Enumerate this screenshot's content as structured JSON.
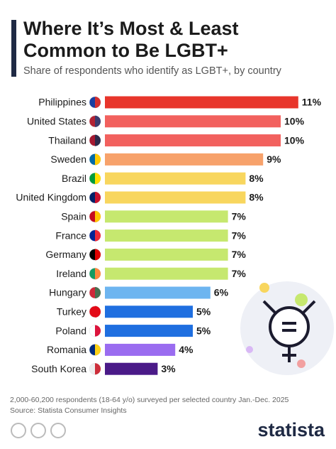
{
  "chart_data": {
    "type": "bar",
    "orientation": "horizontal",
    "title": "Where It’s Most & Least Common to Be LGBT+",
    "subtitle": "Share of respondents who identify as LGBT+, by country",
    "categories": [
      "Philippines",
      "United States",
      "Thailand",
      "Sweden",
      "Brazil",
      "United Kingdom",
      "Spain",
      "France",
      "Germany",
      "Ireland",
      "Hungary",
      "Turkey",
      "Poland",
      "Romania",
      "South Korea"
    ],
    "values": [
      11,
      10,
      10,
      9,
      8,
      8,
      7,
      7,
      7,
      7,
      6,
      5,
      5,
      4,
      3
    ],
    "value_labels": [
      "11%",
      "10%",
      "10%",
      "9%",
      "8%",
      "8%",
      "7%",
      "7%",
      "7%",
      "7%",
      "6%",
      "5%",
      "5%",
      "4%",
      "3%"
    ],
    "colors": [
      "#e8352b",
      "#f2615e",
      "#f2615e",
      "#f7a26b",
      "#f8d65e",
      "#f8d65e",
      "#c6e86f",
      "#c6e86f",
      "#c6e86f",
      "#c6e86f",
      "#6db5f0",
      "#1f6fe0",
      "#1f6fe0",
      "#9a6cf0",
      "#4a1a88"
    ]
  },
  "footer": {
    "note": "2,000-60,200 respondents (18-64 y/o) surveyed per selected country Jan.-Dec. 2025",
    "source": "Source: Statista Consumer Insights",
    "brand": "statista"
  }
}
